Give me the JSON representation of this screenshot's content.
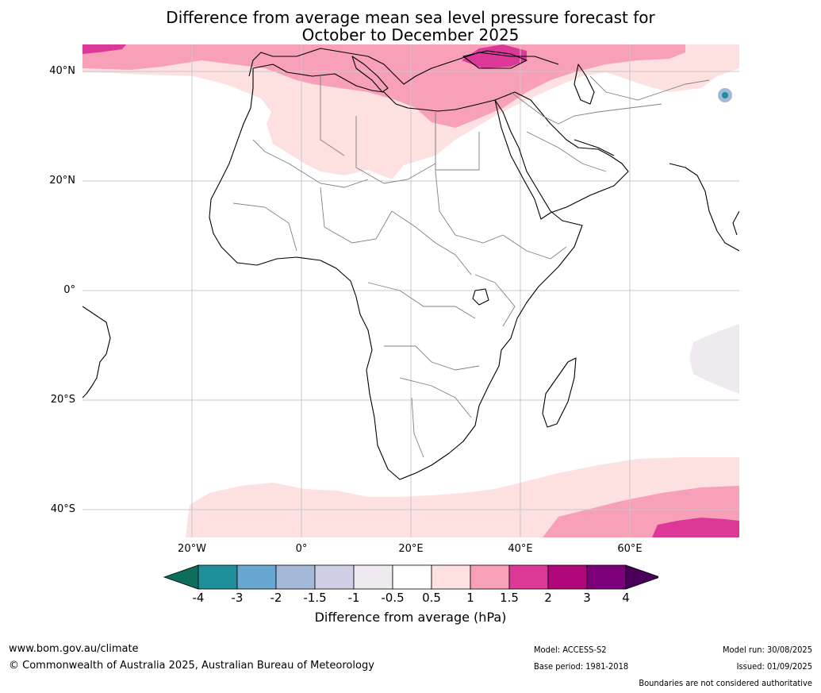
{
  "title": {
    "line1": "Difference from average mean sea level pressure forecast for",
    "line2": "October to December 2025"
  },
  "map": {
    "lat_labels": [
      "40°N",
      "20°N",
      "0°",
      "20°S",
      "40°S"
    ],
    "lon_labels": [
      "20°W",
      "0°",
      "20°E",
      "40°E",
      "60°E"
    ],
    "extent": {
      "lon_min": -20,
      "lon_max": 80,
      "lat_min": -45,
      "lat_max": 45
    }
  },
  "colorbar": {
    "tick_labels": [
      "-4",
      "-3",
      "-2",
      "-1.5",
      "-1",
      "-0.5",
      "0.5",
      "1",
      "1.5",
      "2",
      "3",
      "4"
    ],
    "colors": [
      "#0d6e5e",
      "#1e8f98",
      "#68a8d0",
      "#a4b8d8",
      "#cfd0e5",
      "#eeeaf0",
      "#ffffff",
      "#fde0e0",
      "#f7a0b8",
      "#db3898",
      "#b0087a",
      "#7b007a",
      "#4a0058"
    ],
    "title": "Difference from average (hPa)"
  },
  "footer": {
    "website": "www.bom.gov.au/climate",
    "copyright": "© Commonwealth of Australia 2025, Australian Bureau of Meteorology",
    "model": "Model: ACCESS-S2",
    "base_period": "Base period: 1981-2018",
    "model_run": "Model run: 30/08/2025",
    "issued": "Issued: 01/09/2025",
    "boundaries": "Boundaries are not considered authoritative"
  }
}
